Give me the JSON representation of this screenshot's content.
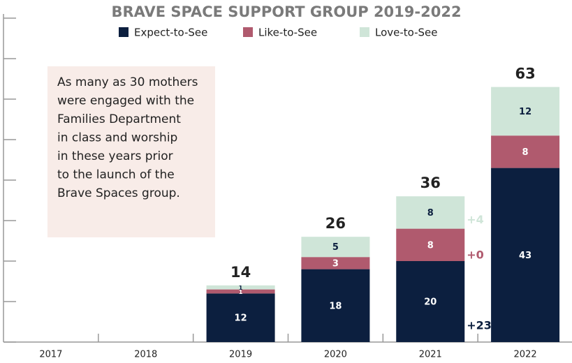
{
  "chart_data": {
    "type": "stacked-bar",
    "title": "BRAVE SPACE SUPPORT GROUP 2019-2022",
    "categories": [
      "2017",
      "2018",
      "2019",
      "2020",
      "2021",
      "2022"
    ],
    "series": [
      {
        "name": "Expect-to-See",
        "color": "#0c1f3f",
        "label_color": "#ffffff",
        "values": [
          null,
          null,
          12,
          18,
          20,
          43
        ]
      },
      {
        "name": "Like-to-See",
        "color": "#b05a6e",
        "label_color": "#ffffff",
        "values": [
          null,
          null,
          1,
          3,
          8,
          8
        ]
      },
      {
        "name": "Love-to-See",
        "color": "#cfe5d8",
        "label_color": "#0c1f3f",
        "values": [
          null,
          null,
          1,
          5,
          8,
          12
        ]
      }
    ],
    "totals": [
      null,
      null,
      14,
      26,
      36,
      63
    ],
    "ylim": [
      0,
      80
    ],
    "yticks": [
      0,
      10,
      20,
      30,
      40,
      50,
      60,
      70,
      80
    ],
    "annotations": [
      {
        "category": "2021",
        "text": "+23",
        "color": "#0c1f3f"
      },
      {
        "category": "2021",
        "text": "+0",
        "color": "#b05a6e"
      },
      {
        "category": "2021",
        "text": "+4",
        "color": "#cfe5d8"
      }
    ],
    "note": [
      "As many as 30 mothers",
      "were engaged with the",
      "Families Department",
      "in class and worship",
      "in these years prior",
      "to the launch of the",
      "Brave Spaces group."
    ]
  }
}
